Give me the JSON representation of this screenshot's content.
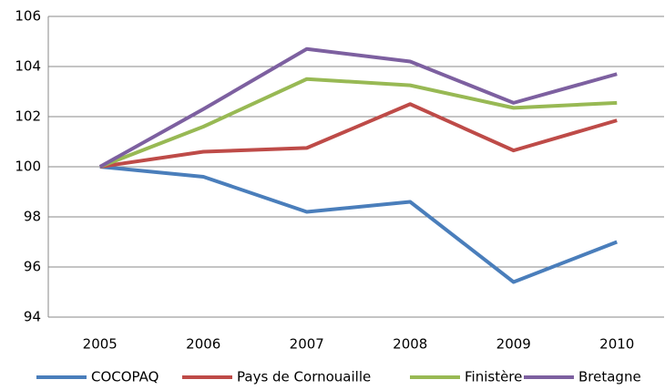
{
  "chart_data": {
    "type": "line",
    "categories": [
      "2005",
      "2006",
      "2007",
      "2008",
      "2009",
      "2010"
    ],
    "series": [
      {
        "name": "COCOPAQ",
        "color": "#4a7ebb",
        "values": [
          100,
          99.6,
          98.2,
          98.6,
          95.4,
          97.0
        ]
      },
      {
        "name": "Pays de Cornouaille",
        "color": "#be4b48",
        "values": [
          100,
          100.6,
          100.75,
          102.5,
          100.65,
          101.85
        ]
      },
      {
        "name": "Finistère",
        "color": "#98b954",
        "values": [
          100,
          101.6,
          103.5,
          103.25,
          102.35,
          102.55
        ]
      },
      {
        "name": "Bretagne",
        "color": "#7d60a0",
        "values": [
          100,
          102.3,
          104.7,
          104.2,
          102.55,
          103.7
        ]
      }
    ],
    "ylim": [
      94,
      106
    ],
    "yticks": [
      94,
      96,
      98,
      100,
      102,
      104,
      106
    ],
    "grid": true,
    "legend": "bottom"
  }
}
